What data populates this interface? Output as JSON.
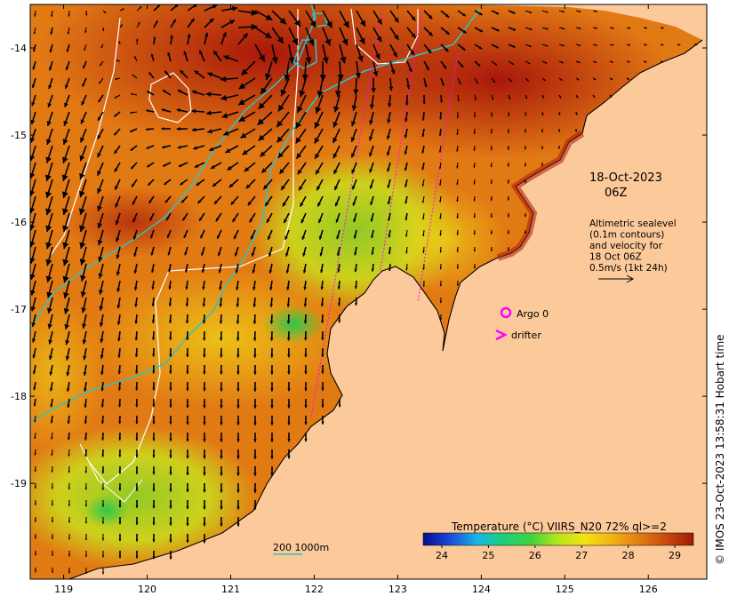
{
  "map": {
    "lon_range": [
      118.6,
      126.7
    ],
    "lat_range": [
      -20.1,
      -13.5
    ],
    "lon_ticks": [
      "119",
      "120",
      "121",
      "122",
      "123",
      "124",
      "125",
      "126"
    ],
    "lat_ticks": [
      "-14",
      "-15",
      "-16",
      "-17",
      "-18",
      "-19"
    ]
  },
  "annotations": {
    "date_line1": "18-Oct-2023",
    "date_line2": "06Z",
    "sealevel_lines": [
      "Altimetric sealevel",
      "(0.1m contours)",
      "and velocity for",
      "18 Oct 06Z",
      "0.5m/s (1kt 24h)"
    ],
    "argo_label": "Argo 0",
    "drifter_label": "drifter",
    "isobath_label": "200  1000m",
    "credit": "© IMOS 23-Oct-2023 13:58:31 Hobart time"
  },
  "colorbar": {
    "title": "Temperature (°C) VIIRS_N20 72% ql>=2",
    "ticks": [
      "24",
      "25",
      "26",
      "27",
      "28",
      "29"
    ],
    "range": [
      23.6,
      29.4
    ],
    "stops": [
      "#0a0a8c",
      "#1a4bd6",
      "#17b6e6",
      "#1ecf7a",
      "#3fd43a",
      "#b8e61e",
      "#f2e214",
      "#f2b214",
      "#e07d12",
      "#c84a0c",
      "#a01a06"
    ]
  },
  "colors": {
    "land": "#fcc99a",
    "isobath_200": "#2ec4c4",
    "isobath_1000": "#c8c8c8",
    "drifter": "#ff00ff",
    "contour": "#ffffff"
  }
}
